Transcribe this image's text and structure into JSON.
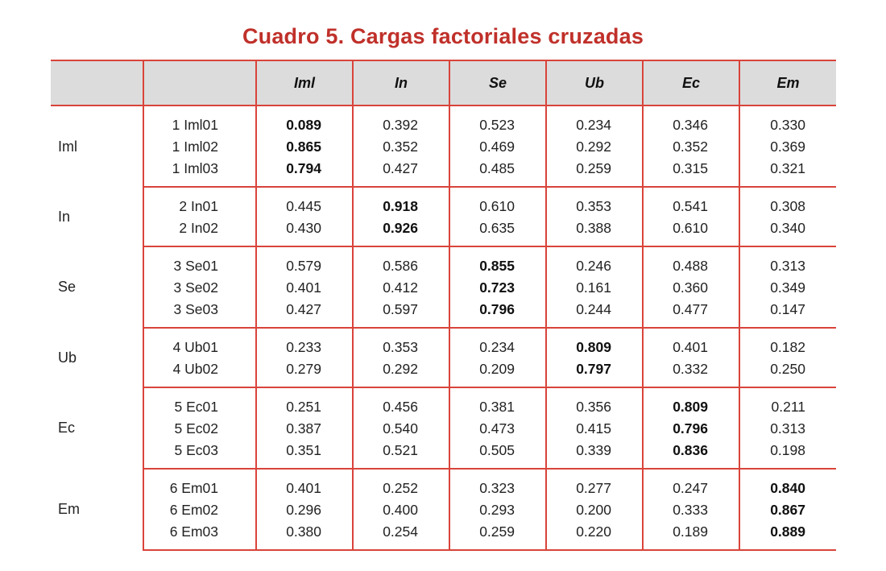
{
  "title": "Cuadro 5. Cargas factoriales cruzadas",
  "columns": [
    "",
    "",
    "Iml",
    "In",
    "Se",
    "Ub",
    "Ec",
    "Em"
  ],
  "groups": [
    {
      "label": "Iml",
      "bold_col": 0,
      "rows": [
        {
          "indicator": "1 Iml01",
          "values": [
            "0.089",
            "0.392",
            "0.523",
            "0.234",
            "0.346",
            "0.330"
          ]
        },
        {
          "indicator": "1 Iml02",
          "values": [
            "0.865",
            "0.352",
            "0.469",
            "0.292",
            "0.352",
            "0.369"
          ]
        },
        {
          "indicator": "1 Iml03",
          "values": [
            "0.794",
            "0.427",
            "0.485",
            "0.259",
            "0.315",
            "0.321"
          ]
        }
      ]
    },
    {
      "label": "In",
      "bold_col": 1,
      "rows": [
        {
          "indicator": "2 In01",
          "values": [
            "0.445",
            "0.918",
            "0.610",
            "0.353",
            "0.541",
            "0.308"
          ]
        },
        {
          "indicator": "2 In02",
          "values": [
            "0.430",
            "0.926",
            "0.635",
            "0.388",
            "0.610",
            "0.340"
          ]
        }
      ]
    },
    {
      "label": "Se",
      "bold_col": 2,
      "rows": [
        {
          "indicator": "3 Se01",
          "values": [
            "0.579",
            "0.586",
            "0.855",
            "0.246",
            "0.488",
            "0.313"
          ]
        },
        {
          "indicator": "3 Se02",
          "values": [
            "0.401",
            "0.412",
            "0.723",
            "0.161",
            "0.360",
            "0.349"
          ]
        },
        {
          "indicator": "3 Se03",
          "values": [
            "0.427",
            "0.597",
            "0.796",
            "0.244",
            "0.477",
            "0.147"
          ]
        }
      ]
    },
    {
      "label": "Ub",
      "bold_col": 3,
      "rows": [
        {
          "indicator": "4 Ub01",
          "values": [
            "0.233",
            "0.353",
            "0.234",
            "0.809",
            "0.401",
            "0.182"
          ]
        },
        {
          "indicator": "4 Ub02",
          "values": [
            "0.279",
            "0.292",
            "0.209",
            "0.797",
            "0.332",
            "0.250"
          ]
        }
      ]
    },
    {
      "label": "Ec",
      "bold_col": 4,
      "rows": [
        {
          "indicator": "5 Ec01",
          "values": [
            "0.251",
            "0.456",
            "0.381",
            "0.356",
            "0.809",
            "0.211"
          ]
        },
        {
          "indicator": "5 Ec02",
          "values": [
            "0.387",
            "0.540",
            "0.473",
            "0.415",
            "0.796",
            "0.313"
          ]
        },
        {
          "indicator": "5 Ec03",
          "values": [
            "0.351",
            "0.521",
            "0.505",
            "0.339",
            "0.836",
            "0.198"
          ]
        }
      ]
    },
    {
      "label": "Em",
      "bold_col": 5,
      "rows": [
        {
          "indicator": "6 Em01",
          "values": [
            "0.401",
            "0.252",
            "0.323",
            "0.277",
            "0.247",
            "0.840"
          ]
        },
        {
          "indicator": "6 Em02",
          "values": [
            "0.296",
            "0.400",
            "0.293",
            "0.200",
            "0.333",
            "0.867"
          ]
        },
        {
          "indicator": "6 Em03",
          "values": [
            "0.380",
            "0.254",
            "0.259",
            "0.220",
            "0.189",
            "0.889"
          ]
        }
      ]
    }
  ],
  "colors": {
    "accent": "#d9443b",
    "title": "#c0302a",
    "header_bg": "#dcdcdc"
  }
}
